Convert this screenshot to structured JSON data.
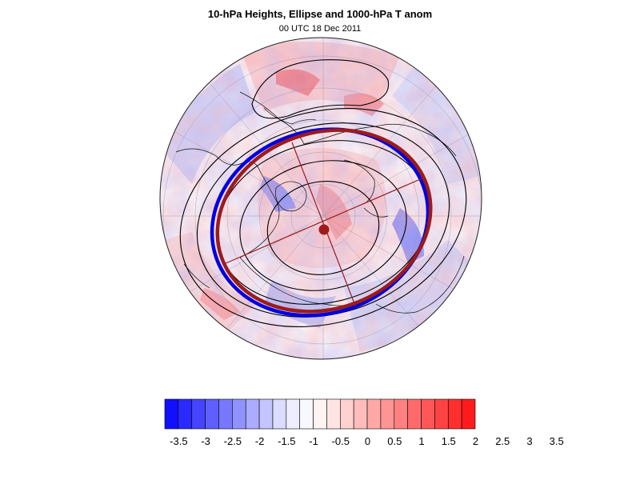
{
  "title": "10-hPa Heights, Ellipse and 1000-hPa T anom",
  "subtitle": "00 UTC 18 Dec 2011",
  "colorbar": {
    "labels": [
      "-3.5",
      "-3",
      "-2.5",
      "-2",
      "-1.5",
      "-1",
      "-0.5",
      "0",
      "0.5",
      "1",
      "1.5",
      "2",
      "2.5",
      "3",
      "3.5"
    ],
    "colors": [
      "#1010ff",
      "#2a2aff",
      "#4545ff",
      "#5f5fff",
      "#7878ff",
      "#9292ff",
      "#ababff",
      "#c4c4ff",
      "#dcdcff",
      "#eeeeff",
      "#f8f8ff",
      "#fff4f4",
      "#ffe4e4",
      "#ffd0d0",
      "#ffbcbc",
      "#ffa8a8",
      "#ff9494",
      "#ff8080",
      "#ff6b6b",
      "#ff5757",
      "#ff4343",
      "#ff2f2f",
      "#ff1b1b"
    ]
  },
  "map": {
    "projection": "north-polar-stereographic",
    "ellipse_color": "#9b1b1b",
    "obs_contour_color": "#0000dd",
    "height_contour_color": "#000000"
  }
}
